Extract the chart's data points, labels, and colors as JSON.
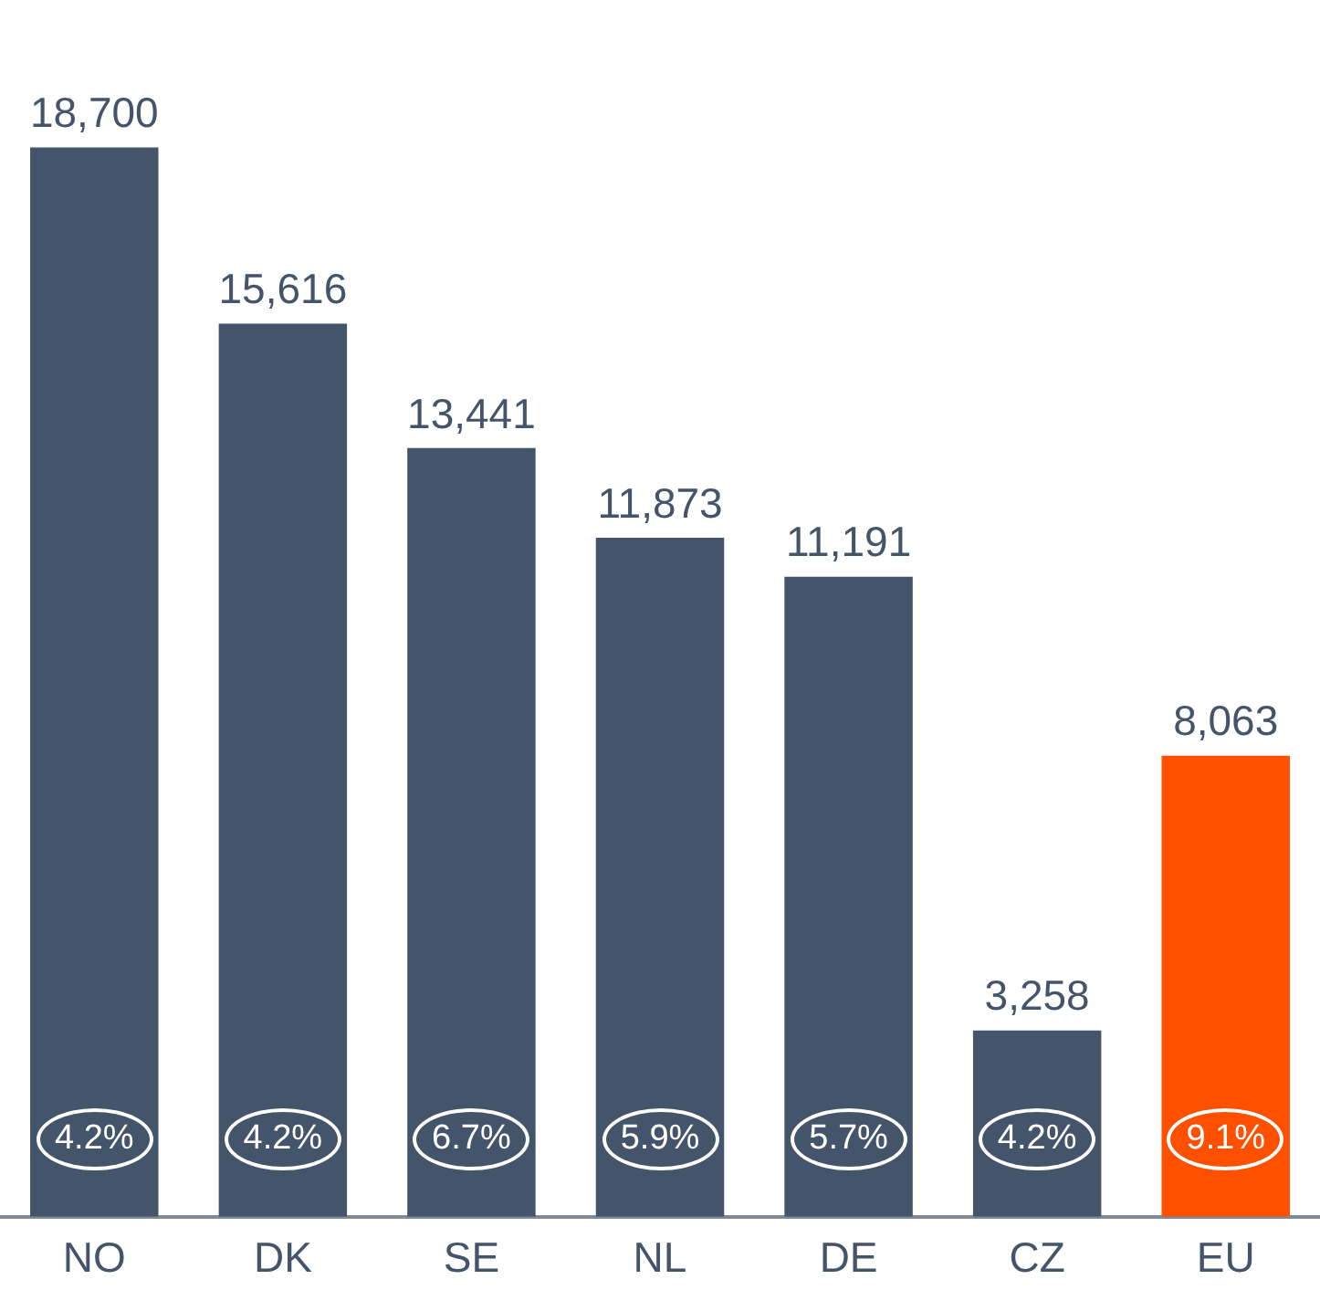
{
  "chart_data": {
    "type": "bar",
    "categories": [
      "NO",
      "DK",
      "SE",
      "NL",
      "DE",
      "CZ",
      "EU"
    ],
    "values": [
      18700,
      15616,
      13441,
      11873,
      11191,
      3258,
      8063
    ],
    "value_labels": [
      "18,700",
      "15,616",
      "13,441",
      "11,873",
      "11,191",
      "3,258",
      "8,063"
    ],
    "colors": [
      "#44546a",
      "#44546a",
      "#44546a",
      "#44546a",
      "#44546a",
      "#44546a",
      "#ff5000"
    ],
    "grid": false,
    "legend": false,
    "tick_labels": "x",
    "annotations": [
      "4.2%",
      "4.2%",
      "6.7%",
      "5.9%",
      "5.7%",
      "4.2%",
      "9.1%"
    ]
  }
}
